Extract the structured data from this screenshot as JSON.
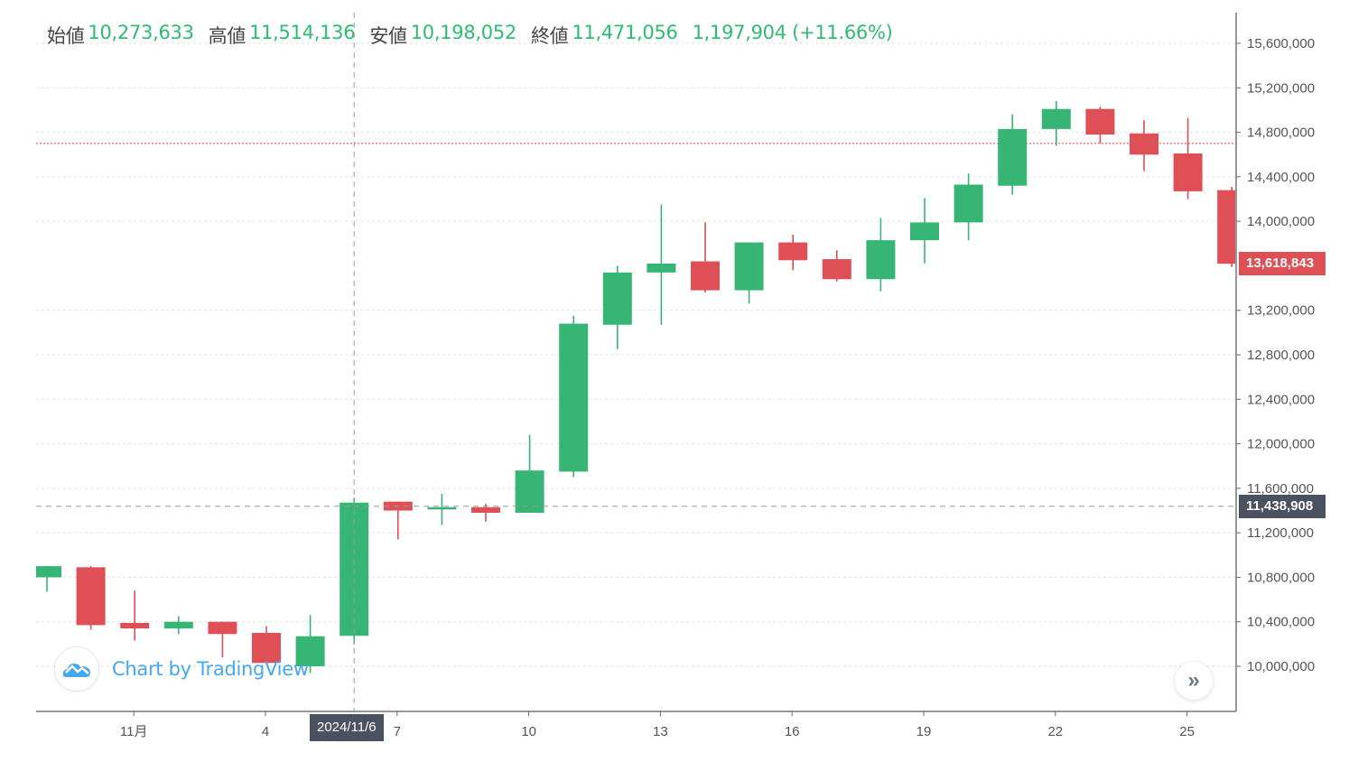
{
  "legend": {
    "open_label": "始値",
    "open_value": "10,273,633",
    "high_label": "高値",
    "high_value": "11,514,136",
    "low_label": "安値",
    "low_value": "10,198,052",
    "close_label": "終値",
    "close_value": "11,471,056",
    "change": "1,197,904 (+11.66%)"
  },
  "price_tags": {
    "last_price": "13,618,843",
    "crosshair_price": "11,438,908"
  },
  "crosshair_date": "2024/11/6",
  "watermark": {
    "text": "Chart by TradingView",
    "icon": "tradingview-cloud-icon"
  },
  "scroll_button": {
    "icon": "double-chevron-right-icon",
    "glyph": "»"
  },
  "colors": {
    "up": "#36b574",
    "down": "#de5055",
    "grid": "#e3e3e3",
    "last_price_line": "#e0424a",
    "crosshair": "#9a9a9a",
    "crosshair_tag": "#4a5260"
  },
  "chart_data": {
    "type": "candlestick",
    "title": "",
    "xlabel": "",
    "ylabel": "",
    "ylim": [
      9650000,
      15800000
    ],
    "y_ticks": [
      "15,600,000",
      "15,200,000",
      "14,800,000",
      "14,400,000",
      "14,000,000",
      "13,200,000",
      "12,800,000",
      "12,400,000",
      "12,000,000",
      "11,600,000",
      "11,200,000",
      "10,800,000",
      "10,400,000",
      "10,000,000"
    ],
    "x_ticks": [
      {
        "label": "11月",
        "index": 2
      },
      {
        "label": "4",
        "index": 5
      },
      {
        "label": "7",
        "index": 8
      },
      {
        "label": "10",
        "index": 11
      },
      {
        "label": "13",
        "index": 14
      },
      {
        "label": "16",
        "index": 17
      },
      {
        "label": "19",
        "index": 20
      },
      {
        "label": "22",
        "index": 23
      },
      {
        "label": "25",
        "index": 26
      }
    ],
    "grid": true,
    "last_price": 13618843,
    "crosshair_price": 11438908,
    "highlight_line_price": 14700000,
    "candles": [
      {
        "date": "10/29",
        "open": 10800000,
        "high": 10900000,
        "low": 10670000,
        "close": 10900000
      },
      {
        "date": "10/30",
        "open": 10890000,
        "high": 10900000,
        "low": 10330000,
        "close": 10370000
      },
      {
        "date": "11/1",
        "open": 10390000,
        "high": 10680000,
        "low": 10230000,
        "close": 10340000
      },
      {
        "date": "11/2",
        "open": 10340000,
        "high": 10450000,
        "low": 10290000,
        "close": 10400000
      },
      {
        "date": "11/3",
        "open": 10400000,
        "high": 10400000,
        "low": 10080000,
        "close": 10290000
      },
      {
        "date": "11/4",
        "open": 10300000,
        "high": 10360000,
        "low": 10030000,
        "close": 10030000
      },
      {
        "date": "11/5",
        "open": 10000000,
        "high": 10460000,
        "low": 9940000,
        "close": 10270000
      },
      {
        "date": "11/6",
        "open": 10273633,
        "high": 11514136,
        "low": 10198052,
        "close": 11471056
      },
      {
        "date": "11/7",
        "open": 11480000,
        "high": 11480000,
        "low": 11140000,
        "close": 11400000
      },
      {
        "date": "11/8",
        "open": 11410000,
        "high": 11550000,
        "low": 11270000,
        "close": 11430000
      },
      {
        "date": "11/9",
        "open": 11430000,
        "high": 11460000,
        "low": 11300000,
        "close": 11380000
      },
      {
        "date": "11/10",
        "open": 11380000,
        "high": 12080000,
        "low": 11380000,
        "close": 11760000
      },
      {
        "date": "11/11",
        "open": 11750000,
        "high": 13150000,
        "low": 11700000,
        "close": 13080000
      },
      {
        "date": "11/12",
        "open": 13070000,
        "high": 13600000,
        "low": 12850000,
        "close": 13540000
      },
      {
        "date": "11/13",
        "open": 13540000,
        "high": 14150000,
        "low": 13070000,
        "close": 13620000
      },
      {
        "date": "11/14",
        "open": 13640000,
        "high": 13990000,
        "low": 13360000,
        "close": 13380000
      },
      {
        "date": "11/15",
        "open": 13380000,
        "high": 13810000,
        "low": 13260000,
        "close": 13810000
      },
      {
        "date": "11/16",
        "open": 13810000,
        "high": 13880000,
        "low": 13560000,
        "close": 13650000
      },
      {
        "date": "11/17",
        "open": 13660000,
        "high": 13740000,
        "low": 13460000,
        "close": 13480000
      },
      {
        "date": "11/18",
        "open": 13480000,
        "high": 14030000,
        "low": 13370000,
        "close": 13830000
      },
      {
        "date": "11/19",
        "open": 13830000,
        "high": 14210000,
        "low": 13620000,
        "close": 13990000
      },
      {
        "date": "11/20",
        "open": 13990000,
        "high": 14430000,
        "low": 13830000,
        "close": 14330000
      },
      {
        "date": "11/21",
        "open": 14320000,
        "high": 14960000,
        "low": 14240000,
        "close": 14830000
      },
      {
        "date": "11/22",
        "open": 14830000,
        "high": 15080000,
        "low": 14680000,
        "close": 15010000
      },
      {
        "date": "11/23",
        "open": 15010000,
        "high": 15030000,
        "low": 14700000,
        "close": 14780000
      },
      {
        "date": "11/24",
        "open": 14790000,
        "high": 14910000,
        "low": 14450000,
        "close": 14600000
      },
      {
        "date": "11/25",
        "open": 14610000,
        "high": 14930000,
        "low": 14200000,
        "close": 14270000
      },
      {
        "date": "11/26",
        "open": 14280000,
        "high": 14310000,
        "low": 13590000,
        "close": 13618843
      }
    ]
  }
}
